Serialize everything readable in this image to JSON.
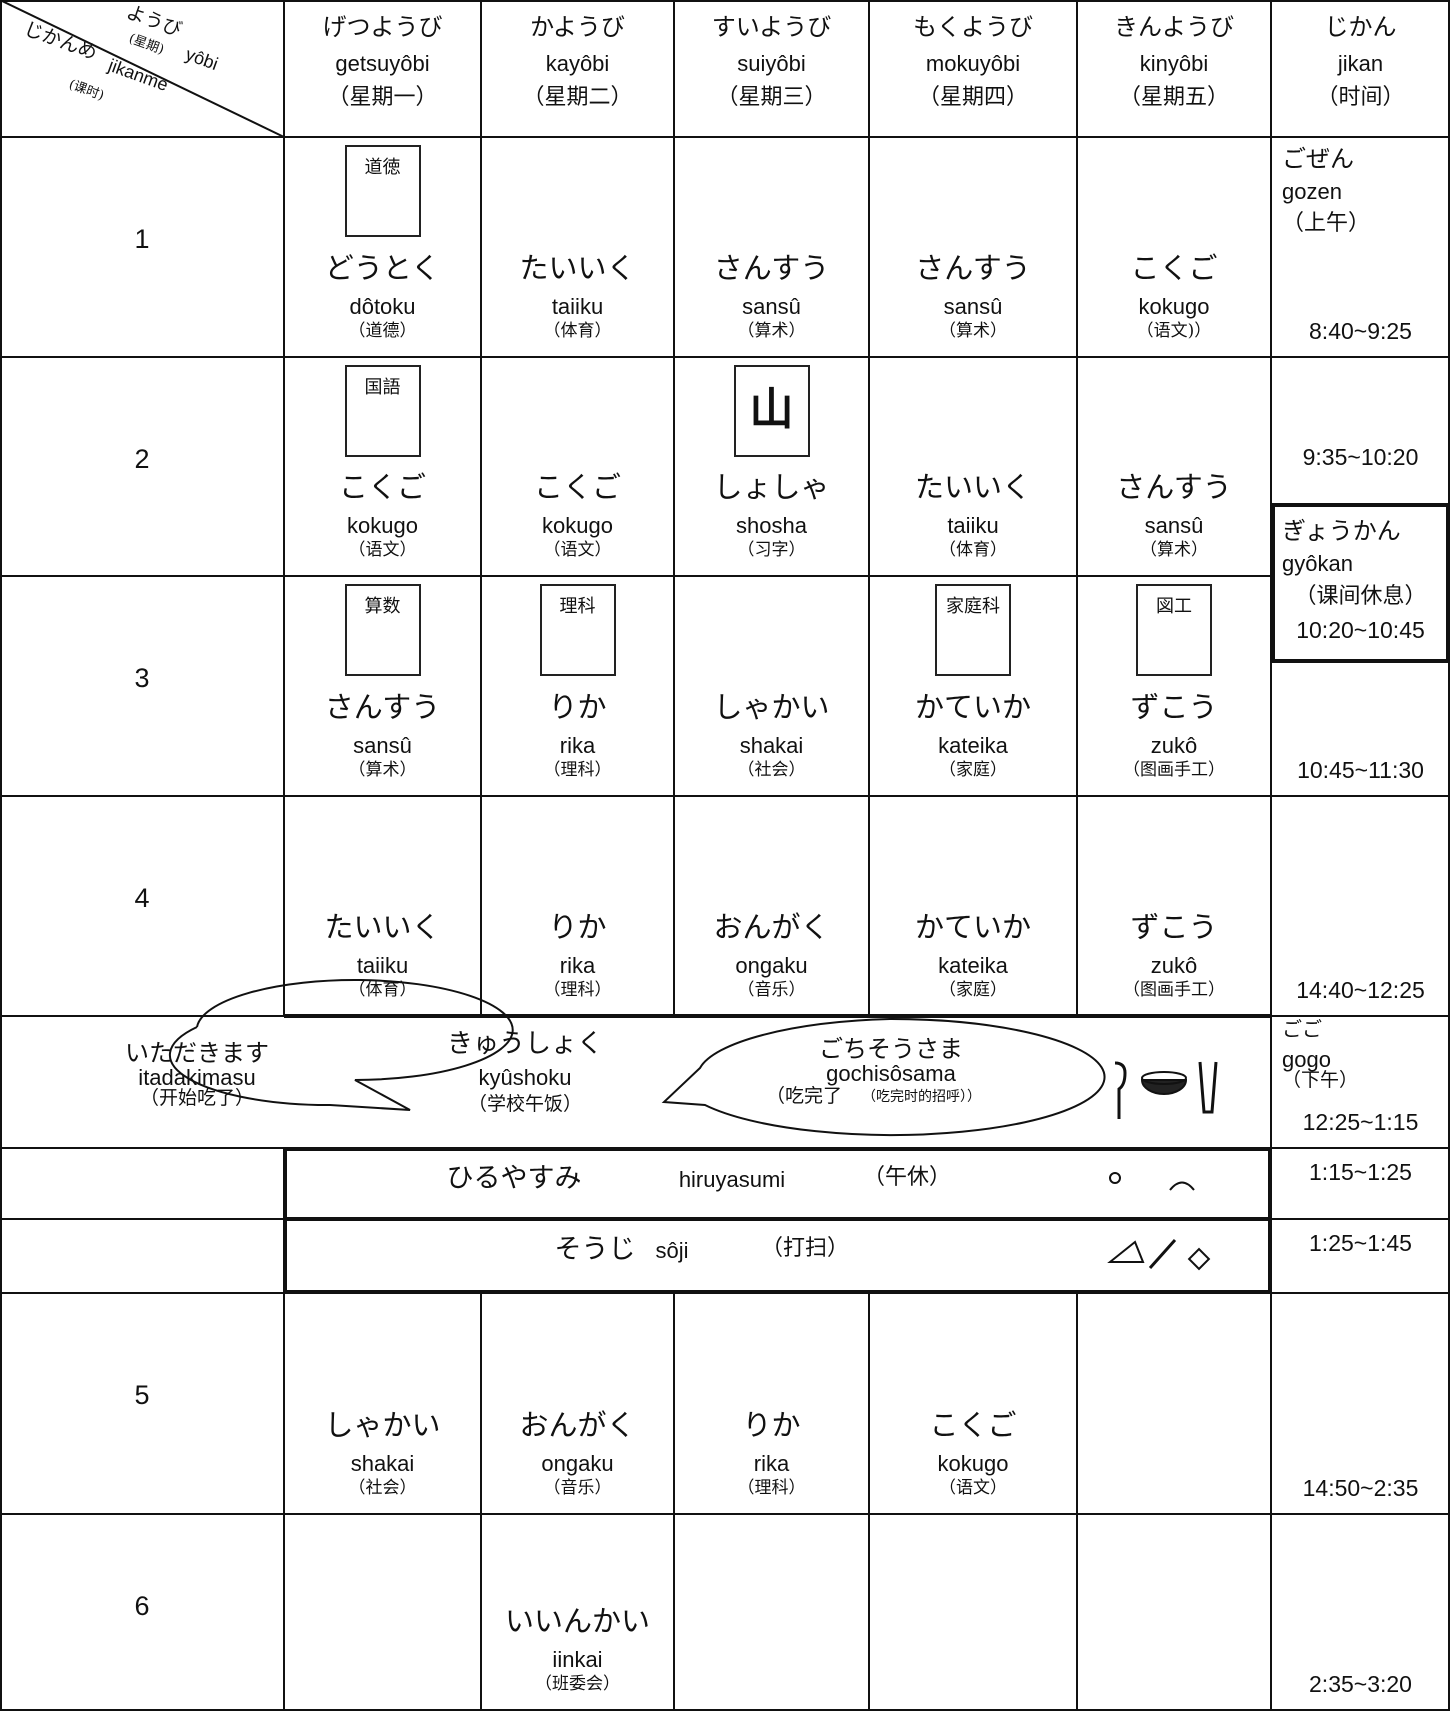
{
  "header": {
    "corner": {
      "yobi_kana": "ようび",
      "yobi_zh": "(星期)",
      "yobi_romaji": "yôbi",
      "jikanme_kana": "じかんめ",
      "jikanme_romaji": "jikanme",
      "jikanme_zh": "(课时)"
    },
    "days": [
      {
        "kana": "げつようび",
        "romaji": "getsuyôbi",
        "zh": "（星期一）"
      },
      {
        "kana": "かようび",
        "romaji": "kayôbi",
        "zh": "（星期二）"
      },
      {
        "kana": "すいようび",
        "romaji": "suiyôbi",
        "zh": "（星期三）"
      },
      {
        "kana": "もくようび",
        "romaji": "mokuyôbi",
        "zh": "（星期四）"
      },
      {
        "kana": "きんようび",
        "romaji": "kinyôbi",
        "zh": "（星期五）"
      }
    ],
    "time": {
      "kana": "じかん",
      "romaji": "jikan",
      "zh": "（时间）"
    }
  },
  "periods": [
    {
      "number": "1",
      "time": "8:40~9:25",
      "subjects": [
        {
          "kana": "どうとく",
          "romaji": "dôtoku",
          "zh": "（道德）",
          "book": "道徳"
        },
        {
          "kana": "たいいく",
          "romaji": "taiiku",
          "zh": "（体育）"
        },
        {
          "kana": "さんすう",
          "romaji": "sansû",
          "zh": "（算术）"
        },
        {
          "kana": "さんすう",
          "romaji": "sansû",
          "zh": "（算术）"
        },
        {
          "kana": "こくご",
          "romaji": "kokugo",
          "zh": "（语文)）"
        }
      ]
    },
    {
      "number": "2",
      "time": "9:35~10:20",
      "subjects": [
        {
          "kana": "こくご",
          "romaji": "kokugo",
          "zh": "（语文）",
          "book": "国語"
        },
        {
          "kana": "こくご",
          "romaji": "kokugo",
          "zh": "（语文）"
        },
        {
          "kana": "しょしゃ",
          "romaji": "shosha",
          "zh": "（习字）",
          "book": "山"
        },
        {
          "kana": "たいいく",
          "romaji": "taiiku",
          "zh": "（体育）"
        },
        {
          "kana": "さんすう",
          "romaji": "sansû",
          "zh": "（算术）"
        }
      ]
    },
    {
      "number": "3",
      "time": "10:45~11:30",
      "subjects": [
        {
          "kana": "さんすう",
          "romaji": "sansû",
          "zh": "（算术）",
          "book": "算数"
        },
        {
          "kana": "りか",
          "romaji": "rika",
          "zh": "（理科）",
          "book": "理科"
        },
        {
          "kana": "しゃかい",
          "romaji": "shakai",
          "zh": "（社会）"
        },
        {
          "kana": "かていか",
          "romaji": "kateika",
          "zh": "（家庭）",
          "book": "家庭科"
        },
        {
          "kana": "ずこう",
          "romaji": "zukô",
          "zh": "（图画手工）",
          "book": "図工"
        }
      ]
    },
    {
      "number": "4",
      "time": "14:40~12:25",
      "subjects": [
        {
          "kana": "たいいく",
          "romaji": "taiiku",
          "zh": "（体育）"
        },
        {
          "kana": "りか",
          "romaji": "rika",
          "zh": "（理科）"
        },
        {
          "kana": "おんがく",
          "romaji": "ongaku",
          "zh": "（音乐）"
        },
        {
          "kana": "かていか",
          "romaji": "kateika",
          "zh": "（家庭）"
        },
        {
          "kana": "ずこう",
          "romaji": "zukô",
          "zh": "（图画手工）"
        }
      ]
    },
    {
      "number": "5",
      "time": "14:50~2:35",
      "subjects": [
        {
          "kana": "しゃかい",
          "romaji": "shakai",
          "zh": "（社会）"
        },
        {
          "kana": "おんがく",
          "romaji": "ongaku",
          "zh": "（音乐）"
        },
        {
          "kana": "りか",
          "romaji": "rika",
          "zh": "（理科）"
        },
        {
          "kana": "こくご",
          "romaji": "kokugo",
          "zh": "（语文）"
        },
        null
      ]
    },
    {
      "number": "6",
      "time": "2:35~3:20",
      "subjects": [
        null,
        {
          "kana": "いいんかい",
          "romaji": "iinkai",
          "zh": "（班委会）"
        },
        null,
        null,
        null
      ]
    }
  ],
  "gozen": {
    "kana": "ごぜん",
    "romaji": "gozen",
    "zh": "（上午）"
  },
  "gyokan": {
    "kana": "ぎょうかん",
    "romaji": "gyôkan",
    "zh": "（课间休息）",
    "time": "10:20~10:45"
  },
  "lunch": {
    "greeting_before": {
      "kana": "いただきます",
      "romaji": "itadakimasu",
      "zh": "（开始吃了）"
    },
    "kyushoku": {
      "kana": "きゅうしょく",
      "romaji": "kyûshoku",
      "zh": "（学校午饭）"
    },
    "greeting_after": {
      "kana": "ごちそうさま",
      "romaji": "gochisôsama",
      "zh": "（吃完了",
      "note": "（吃完时的招呼））"
    },
    "gogo": {
      "kana": "ごご",
      "romaji": "gogo",
      "zh": "（下午）"
    },
    "time": "12:25~1:15"
  },
  "breaks": [
    {
      "kana": "ひるやすみ",
      "romaji": "hiruyasumi",
      "zh": "（午休）",
      "time": "1:15~1:25"
    },
    {
      "kana": "そうじ",
      "romaji": "sôji",
      "zh": "（打扫）",
      "time": "1:25~1:45"
    }
  ]
}
